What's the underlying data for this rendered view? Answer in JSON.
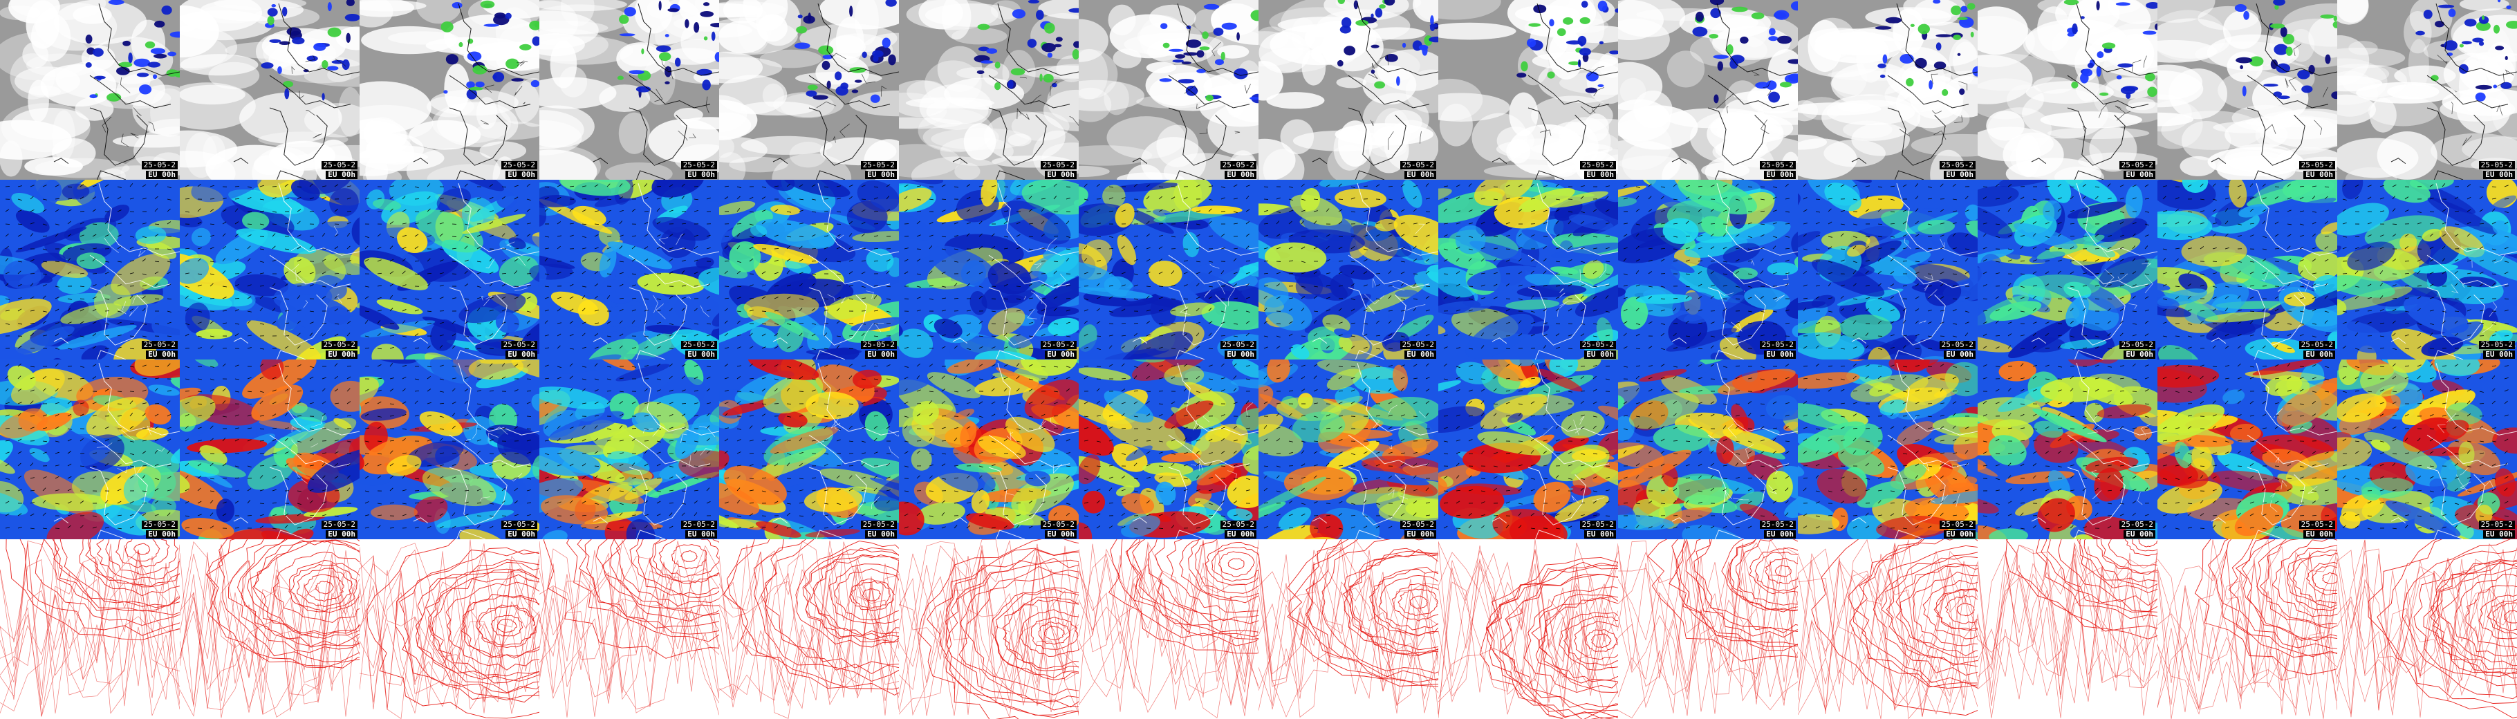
{
  "panel_grid": {
    "columns": 14,
    "rows": [
      {
        "name": "cloud-precip",
        "colors": {
          "low": "#9a9a9a",
          "high": "#ffffff",
          "precip": [
            "#1c3cff",
            "#0d21c8",
            "#3fcf3f",
            "#0b0b7a"
          ],
          "coast": "#000000"
        },
        "stamp": true
      },
      {
        "name": "wind-upper",
        "colors": {
          "ramp": [
            "#0a1fb8",
            "#1b55e6",
            "#1fa4f5",
            "#20d9ee",
            "#47e896",
            "#c8f03a",
            "#ffe21a"
          ],
          "coast": "#ffffff",
          "arrows": "#000000"
        },
        "stamp": true
      },
      {
        "name": "wind-lower",
        "colors": {
          "ramp": [
            "#0a1fb8",
            "#1b55e6",
            "#1fa4f5",
            "#20d9ee",
            "#47e896",
            "#c8f03a",
            "#ffe21a",
            "#ff7a1a",
            "#e01010"
          ],
          "coast": "#ffffff",
          "arrows": "#000000"
        },
        "stamp": true
      },
      {
        "name": "isobars",
        "colors": {
          "lines": "#e8231e",
          "background": "#ffffff"
        },
        "stamp": false
      }
    ],
    "stamp_date": "25-05-2",
    "stamp_run": "EU 00h"
  }
}
